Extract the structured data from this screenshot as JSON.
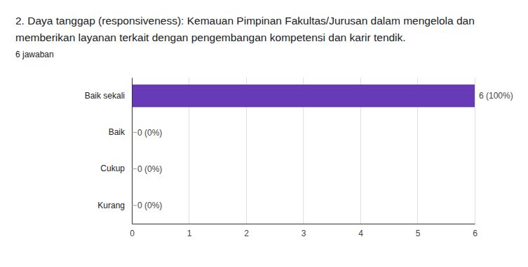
{
  "chart_data": {
    "type": "bar",
    "orientation": "horizontal",
    "title": "2. Daya tanggap (responsiveness):  Kemauan Pimpinan Fakultas/Jurusan dalam mengelola dan memberikan layanan terkait dengan pengembangan kompetensi dan karir tendik.",
    "subtitle": "6 jawaban",
    "categories": [
      "Baik sekali",
      "Baik",
      "Cukup",
      "Kurang"
    ],
    "values": [
      6,
      0,
      0,
      0
    ],
    "value_labels": [
      "6 (100%)",
      "0 (0%)",
      "0 (0%)",
      "0 (0%)"
    ],
    "color": "#673ab7",
    "xlim": [
      0,
      6
    ],
    "xticks": [
      0,
      1,
      2,
      3,
      4,
      5,
      6
    ],
    "grid": true,
    "data_labels": true
  }
}
